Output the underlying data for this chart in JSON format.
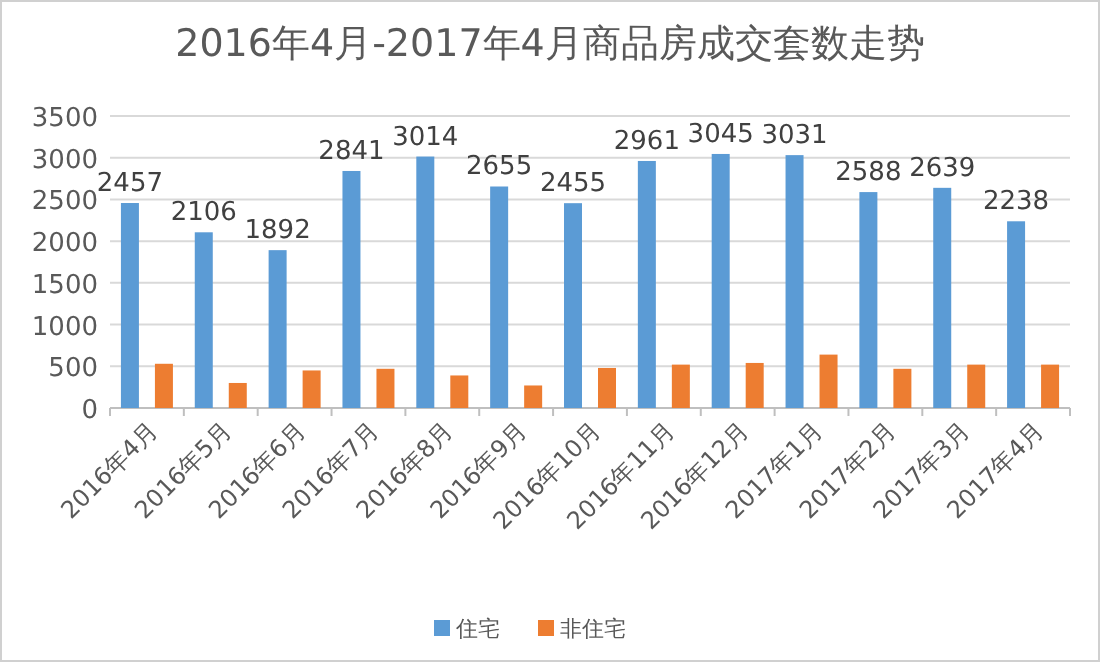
{
  "chart_data": {
    "type": "bar",
    "title": "2016年4月-2017年4月商品房成交套数走势",
    "categories": [
      "2016年4月",
      "2016年5月",
      "2016年6月",
      "2016年7月",
      "2016年8月",
      "2016年9月",
      "2016年10月",
      "2016年11月",
      "2016年12月",
      "2017年1月",
      "2017年2月",
      "2017年3月",
      "2017年4月"
    ],
    "series": [
      {
        "name": "住宅",
        "color": "#5b9bd5",
        "values": [
          2457,
          2106,
          1892,
          2841,
          3014,
          2655,
          2455,
          2961,
          3045,
          3031,
          2588,
          2639,
          2238
        ],
        "value_labels": [
          "2457",
          "2106",
          "1892",
          "2841",
          "3014",
          "2655",
          "2455",
          "2961",
          "3045",
          "3031",
          "2588",
          "2639",
          "2238"
        ]
      },
      {
        "name": "非住宅",
        "color": "#ed7d31",
        "values": [
          530,
          300,
          450,
          470,
          390,
          270,
          480,
          520,
          540,
          640,
          470,
          520,
          520
        ]
      }
    ],
    "ylim": [
      0,
      3500
    ],
    "yticks": [
      0,
      500,
      1000,
      1500,
      2000,
      2500,
      3000,
      3500
    ],
    "grid": "y",
    "legend": "bottom"
  }
}
